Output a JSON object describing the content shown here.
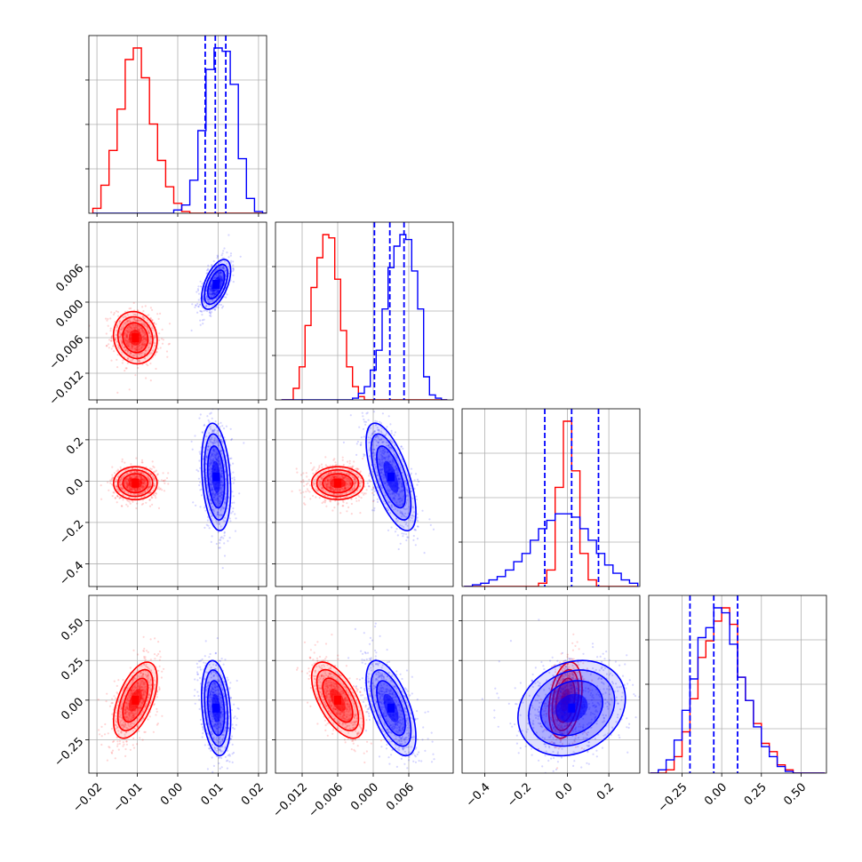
{
  "colors": {
    "series_a": "#ff0000",
    "series_b": "#0000ff",
    "grid": "#b0b0b0"
  },
  "chart_data": {
    "type": "corner",
    "title": "",
    "grid": true,
    "legend": "none",
    "parameters": [
      {
        "range": [
          -0.022,
          0.022
        ],
        "ticks": [
          -0.02,
          -0.01,
          0.0,
          0.01,
          0.02
        ],
        "tick_labels": [
          "−0.02",
          "−0.01",
          "0.00",
          "0.01",
          "0.02"
        ]
      },
      {
        "range": [
          -0.0165,
          0.0135
        ],
        "ticks": [
          -0.012,
          -0.006,
          0.0,
          0.006
        ],
        "tick_labels": [
          "−0.012",
          "−0.006",
          "0.000",
          "0.006"
        ]
      },
      {
        "range": [
          -0.51,
          0.35
        ],
        "ticks": [
          -0.4,
          -0.2,
          0.0,
          0.2
        ],
        "tick_labels": [
          "−0.4",
          "−0.2",
          "0.0",
          "0.2"
        ]
      },
      {
        "range": [
          -0.46,
          0.66
        ],
        "ticks": [
          -0.25,
          0.0,
          0.25,
          0.5
        ],
        "tick_labels": [
          "−0.25",
          "0.00",
          "0.25",
          "0.50"
        ]
      }
    ],
    "series": [
      {
        "color": "red",
        "means": [
          -0.0105,
          -0.006,
          -0.01,
          0.0
        ],
        "sigmas": [
          0.0027,
          0.0022,
          0.04,
          0.12
        ],
        "histograms": [
          {
            "bin_start": -0.021,
            "bin_width": 0.002,
            "counts": [
              0.03,
              0.17,
              0.38,
              0.63,
              0.93,
              1.0,
              0.82,
              0.54,
              0.32,
              0.16,
              0.06,
              0.01,
              0.0,
              0.0,
              0.0,
              0.0,
              0.0,
              0.0,
              0.0,
              0.0,
              0.0,
              0.0
            ]
          },
          {
            "bin_start": -0.0155,
            "bin_width": 0.001,
            "counts": [
              0.0,
              0.0,
              0.07,
              0.2,
              0.45,
              0.68,
              0.86,
              1.0,
              0.98,
              0.73,
              0.42,
              0.2,
              0.08,
              0.02,
              0.0,
              0.0,
              0.0,
              0.0,
              0.0,
              0.0,
              0.0,
              0.0,
              0.0,
              0.0,
              0.0,
              0.0,
              0.0,
              0.0
            ]
          },
          {
            "bin_start": -0.5,
            "bin_width": 0.04,
            "counts": [
              0.0,
              0.0,
              0.0,
              0.0,
              0.0,
              0.0,
              0.0,
              0.0,
              0.0,
              0.02,
              0.1,
              0.6,
              1.0,
              0.7,
              0.2,
              0.04,
              0.0,
              0.0,
              0.0,
              0.0,
              0.0
            ]
          },
          {
            "bin_start": -0.45,
            "bin_width": 0.05,
            "counts": [
              0.0,
              0.0,
              0.02,
              0.1,
              0.25,
              0.45,
              0.7,
              0.8,
              0.92,
              1.0,
              0.9,
              0.58,
              0.44,
              0.3,
              0.18,
              0.13,
              0.05,
              0.02,
              0.0,
              0.0,
              0.0,
              0.0
            ]
          }
        ]
      },
      {
        "color": "blue",
        "means": [
          0.0095,
          0.003,
          0.02,
          -0.05
        ],
        "sigmas": [
          0.0018,
          0.0021,
          0.13,
          0.15
        ],
        "histograms": [
          {
            "bin_start": -0.021,
            "bin_width": 0.002,
            "counts": [
              0.0,
              0.0,
              0.0,
              0.0,
              0.0,
              0.0,
              0.0,
              0.0,
              0.0,
              0.0,
              0.02,
              0.05,
              0.2,
              0.5,
              0.87,
              1.0,
              0.98,
              0.78,
              0.33,
              0.09,
              0.01,
              0.0
            ]
          },
          {
            "bin_start": -0.0155,
            "bin_width": 0.001,
            "counts": [
              0.0,
              0.0,
              0.0,
              0.0,
              0.0,
              0.0,
              0.0,
              0.0,
              0.0,
              0.0,
              0.0,
              0.0,
              0.01,
              0.04,
              0.08,
              0.18,
              0.3,
              0.55,
              0.8,
              0.93,
              1.0,
              0.97,
              0.78,
              0.55,
              0.14,
              0.03,
              0.01,
              0.0
            ]
          },
          {
            "bin_start": -0.5,
            "bin_width": 0.04,
            "counts": [
              0.0,
              0.01,
              0.02,
              0.04,
              0.06,
              0.1,
              0.15,
              0.2,
              0.28,
              0.35,
              0.4,
              0.44,
              0.44,
              0.42,
              0.35,
              0.28,
              0.2,
              0.13,
              0.08,
              0.04,
              0.02
            ]
          },
          {
            "bin_start": -0.45,
            "bin_width": 0.05,
            "counts": [
              0.0,
              0.02,
              0.08,
              0.2,
              0.38,
              0.57,
              0.82,
              0.88,
              1.0,
              0.97,
              0.78,
              0.58,
              0.44,
              0.28,
              0.16,
              0.1,
              0.04,
              0.01,
              0.0,
              0.0,
              0.0,
              0.0
            ]
          }
        ],
        "quantiles": [
          [
            0.0068,
            0.0093,
            0.0119
          ],
          [
            0.0002,
            0.0028,
            0.0052
          ],
          [
            -0.11,
            0.02,
            0.15
          ],
          [
            -0.2,
            -0.05,
            0.1
          ]
        ]
      }
    ],
    "correlations": [
      {
        "pair": [
          1,
          0
        ],
        "red": -0.1,
        "blue": 0.55
      },
      {
        "pair": [
          2,
          0
        ],
        "red": 0.0,
        "blue": -0.25
      },
      {
        "pair": [
          2,
          1
        ],
        "red": 0.0,
        "blue": -0.65
      },
      {
        "pair": [
          3,
          0
        ],
        "red": 0.55,
        "blue": -0.25
      },
      {
        "pair": [
          3,
          1
        ],
        "red": -0.6,
        "blue": -0.6
      },
      {
        "pair": [
          3,
          2
        ],
        "red": 0.3,
        "blue": 0.2
      }
    ]
  }
}
